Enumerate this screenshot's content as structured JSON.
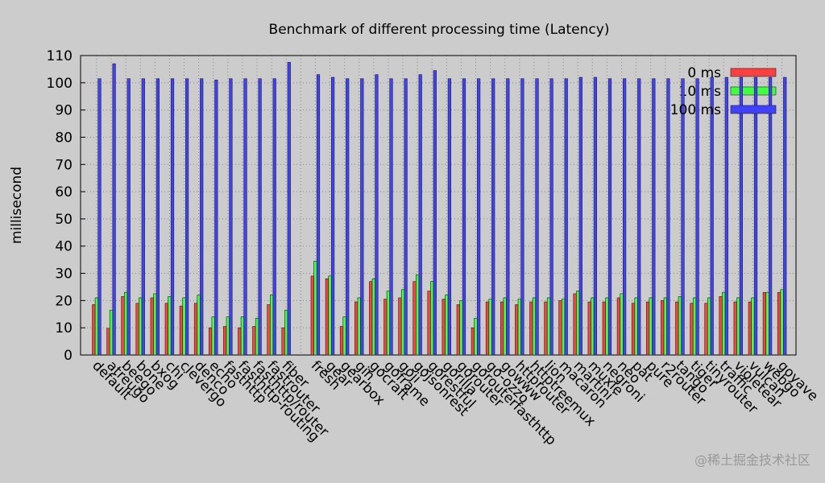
{
  "chart_data": {
    "type": "bar",
    "title": "Benchmark of different processing time (Latency)",
    "y_label": "millisecond",
    "watermark": "@稀土掘金技术社区",
    "categories": [
      "default",
      "atreugo",
      "beego",
      "bone",
      "bxog",
      "chi",
      "clevergo",
      "denco",
      "echo",
      "fasthttp",
      "fasthttp-routing",
      "fasthttp/router",
      "fastrouter",
      "fiber",
      null,
      "fresh",
      "gear",
      "gearbox",
      "gin",
      "gocraft",
      "goframe",
      "goji",
      "gojsonrest",
      "gorestful",
      "gorilla",
      "gorouter",
      "gorouterfasthttp",
      "go-ozzo",
      "gowww",
      "httprouter",
      "httptreemux",
      "lion",
      "macaron",
      "martini",
      "muxie",
      "negroni",
      "neo",
      "pat",
      "pure",
      "r2router",
      "tango",
      "tiger",
      "tinyrouter",
      "traffic",
      "violetear",
      "vulcan",
      "webgo",
      "goyave"
    ],
    "series": [
      {
        "name": "0 ms",
        "color": "#ff4040",
        "values": [
          18.5,
          9.8,
          21.5,
          19,
          21,
          19,
          18,
          19,
          10,
          10.5,
          10,
          10.5,
          18.5,
          10,
          null,
          29,
          28,
          10.5,
          19.5,
          27,
          20.5,
          21,
          27,
          23.5,
          20.5,
          18.5,
          10,
          19.5,
          19.5,
          18.5,
          19.5,
          19.5,
          20,
          22.5,
          19.5,
          19.5,
          21,
          19,
          19.5,
          20,
          19.5,
          19,
          19,
          21.5,
          19.5,
          19.5,
          23,
          23
        ]
      },
      {
        "name": "10 ms",
        "color": "#40ff40",
        "values": [
          21,
          16.5,
          23,
          21,
          22.5,
          21.5,
          21,
          22,
          14,
          14,
          14,
          13.5,
          22,
          16.5,
          null,
          34.5,
          29,
          14,
          21,
          28,
          23.5,
          24,
          29.5,
          27,
          22,
          20,
          13.5,
          20.5,
          21,
          20.5,
          21,
          21,
          20.5,
          23.5,
          21,
          21,
          22.5,
          21,
          21,
          21,
          21.5,
          21,
          21,
          23,
          21,
          21,
          23,
          24
        ]
      },
      {
        "name": "100 ms",
        "color": "#4040ff",
        "values": [
          101.5,
          107,
          101.5,
          101.5,
          101.5,
          101.5,
          101.5,
          101.5,
          101,
          101.5,
          101.5,
          101.5,
          101.5,
          107.5,
          null,
          103,
          102,
          101.5,
          101.5,
          103,
          101.5,
          101.5,
          103,
          104.5,
          101.5,
          101.5,
          101.5,
          101.5,
          101.5,
          101.5,
          101.5,
          101.5,
          101.5,
          102,
          102,
          101.5,
          101.5,
          101.5,
          101.5,
          101.5,
          101.5,
          101.5,
          102,
          102,
          102,
          102,
          102,
          102
        ]
      }
    ],
    "ylim": [
      0,
      110
    ],
    "yticks": [
      0,
      10,
      20,
      30,
      40,
      50,
      60,
      70,
      80,
      90,
      100,
      110
    ],
    "grid": true,
    "legend": "top-right"
  }
}
